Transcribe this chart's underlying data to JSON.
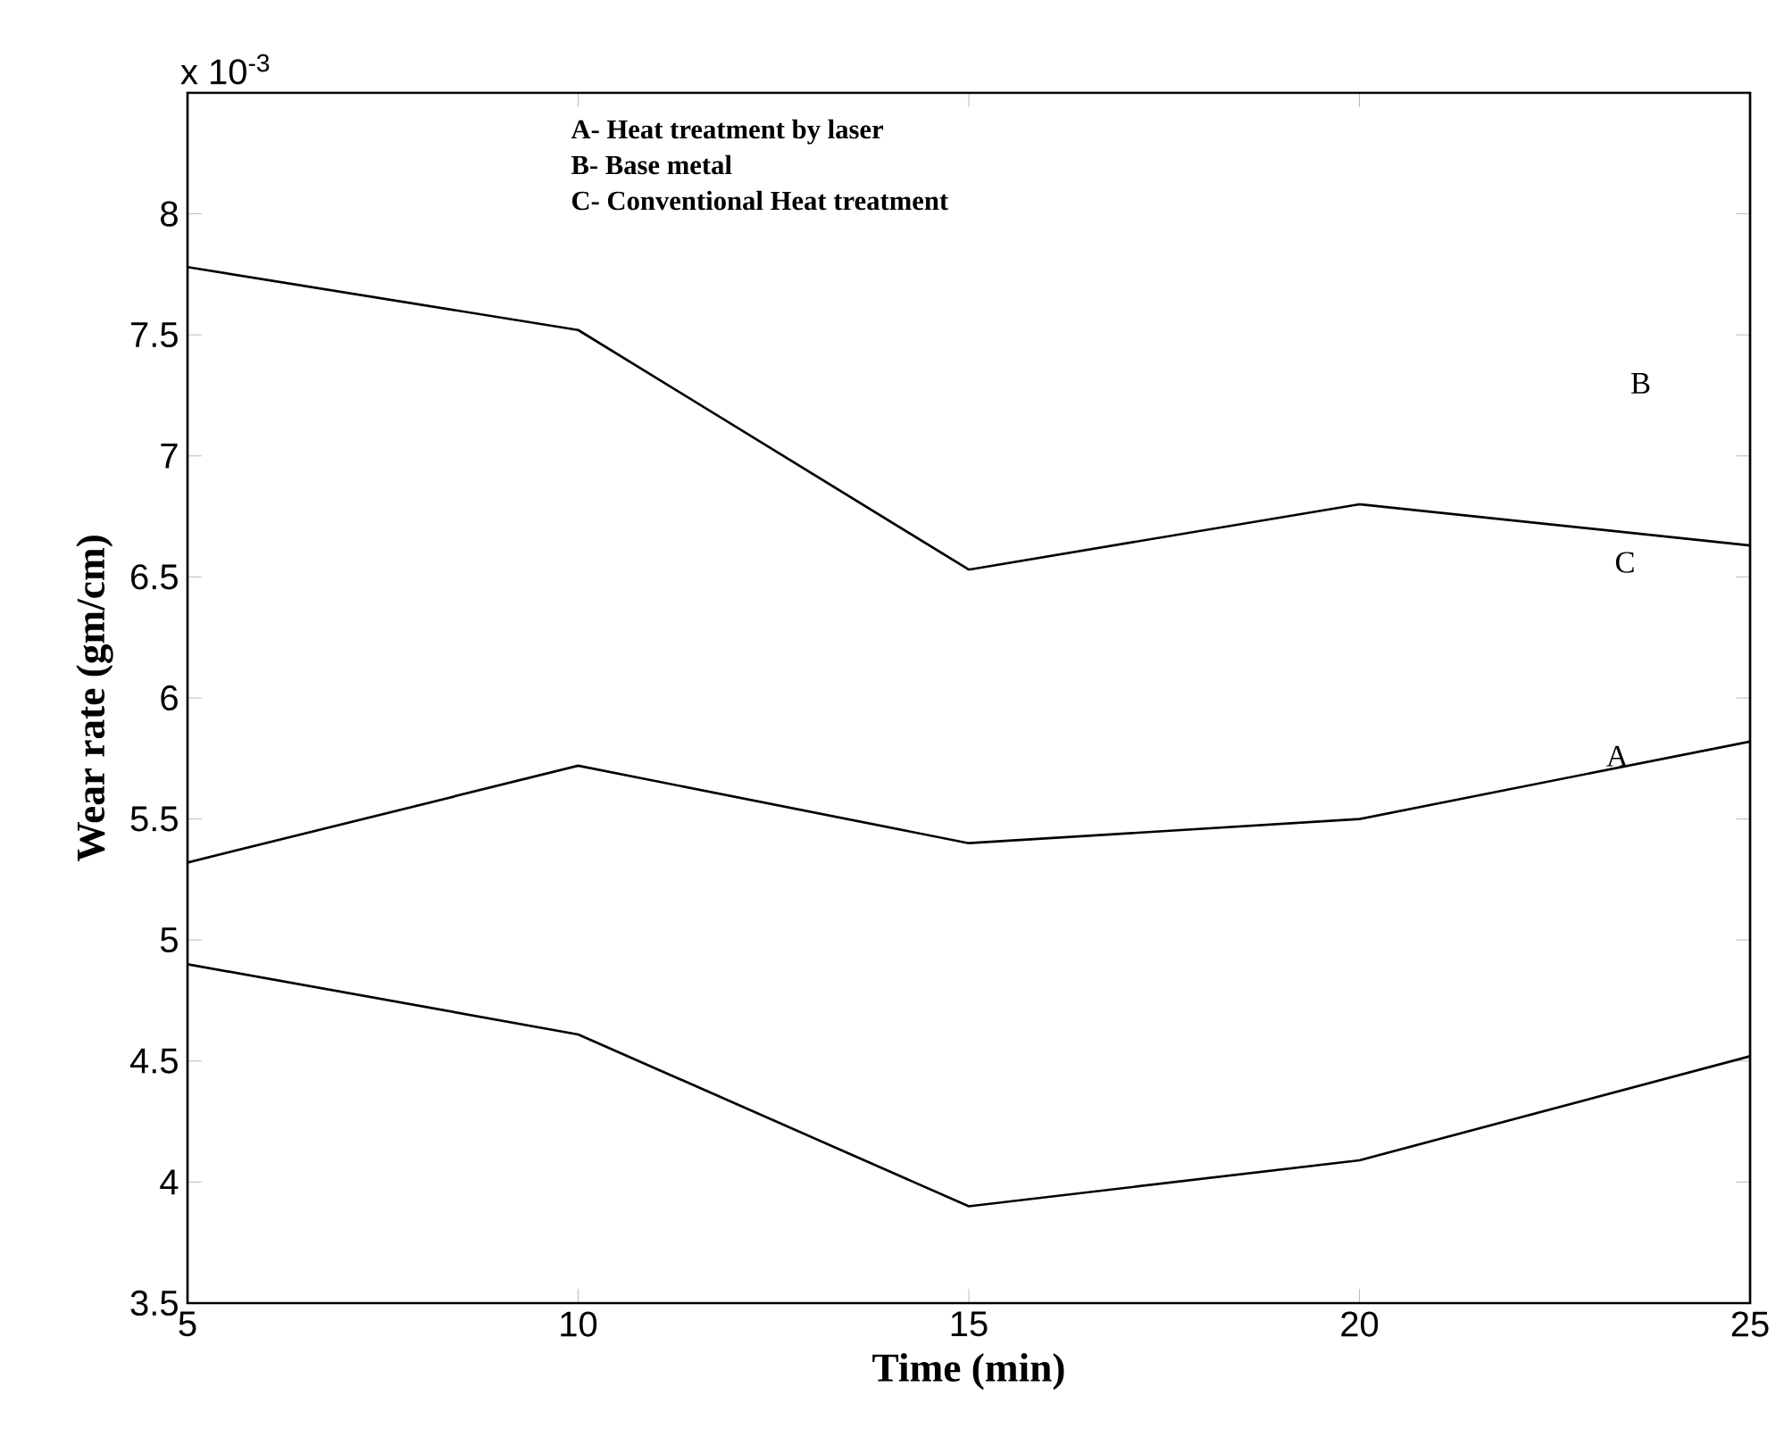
{
  "chart_data": {
    "type": "line",
    "xlabel": "Time (min)",
    "ylabel": "Wear rate (gm/cm)",
    "x": [
      5,
      10,
      15,
      20,
      25
    ],
    "series": [
      {
        "color": "#000000",
        "values": [
          7.78,
          7.52,
          6.53,
          6.8,
          6.63
        ]
      },
      {
        "color": "#000000",
        "values": [
          5.32,
          5.72,
          5.4,
          5.5,
          5.82
        ]
      },
      {
        "color": "#000000",
        "values": [
          4.9,
          4.61,
          3.9,
          4.09,
          4.52
        ]
      }
    ],
    "xlim": [
      5,
      25
    ],
    "xticks": [
      5,
      10,
      15,
      20,
      25
    ],
    "ylim": [
      3.5,
      8.5
    ],
    "yticks": [
      3.5,
      4,
      4.5,
      5,
      5.5,
      6,
      6.5,
      7,
      7.5,
      8
    ],
    "grid": false,
    "line_style": "solid",
    "annotations": [
      "x 10$^{-3}$",
      "A- Heat treatment by laser",
      "B- Base metal",
      "C- Conventional Heat treatment",
      "B",
      "C",
      "A"
    ]
  }
}
